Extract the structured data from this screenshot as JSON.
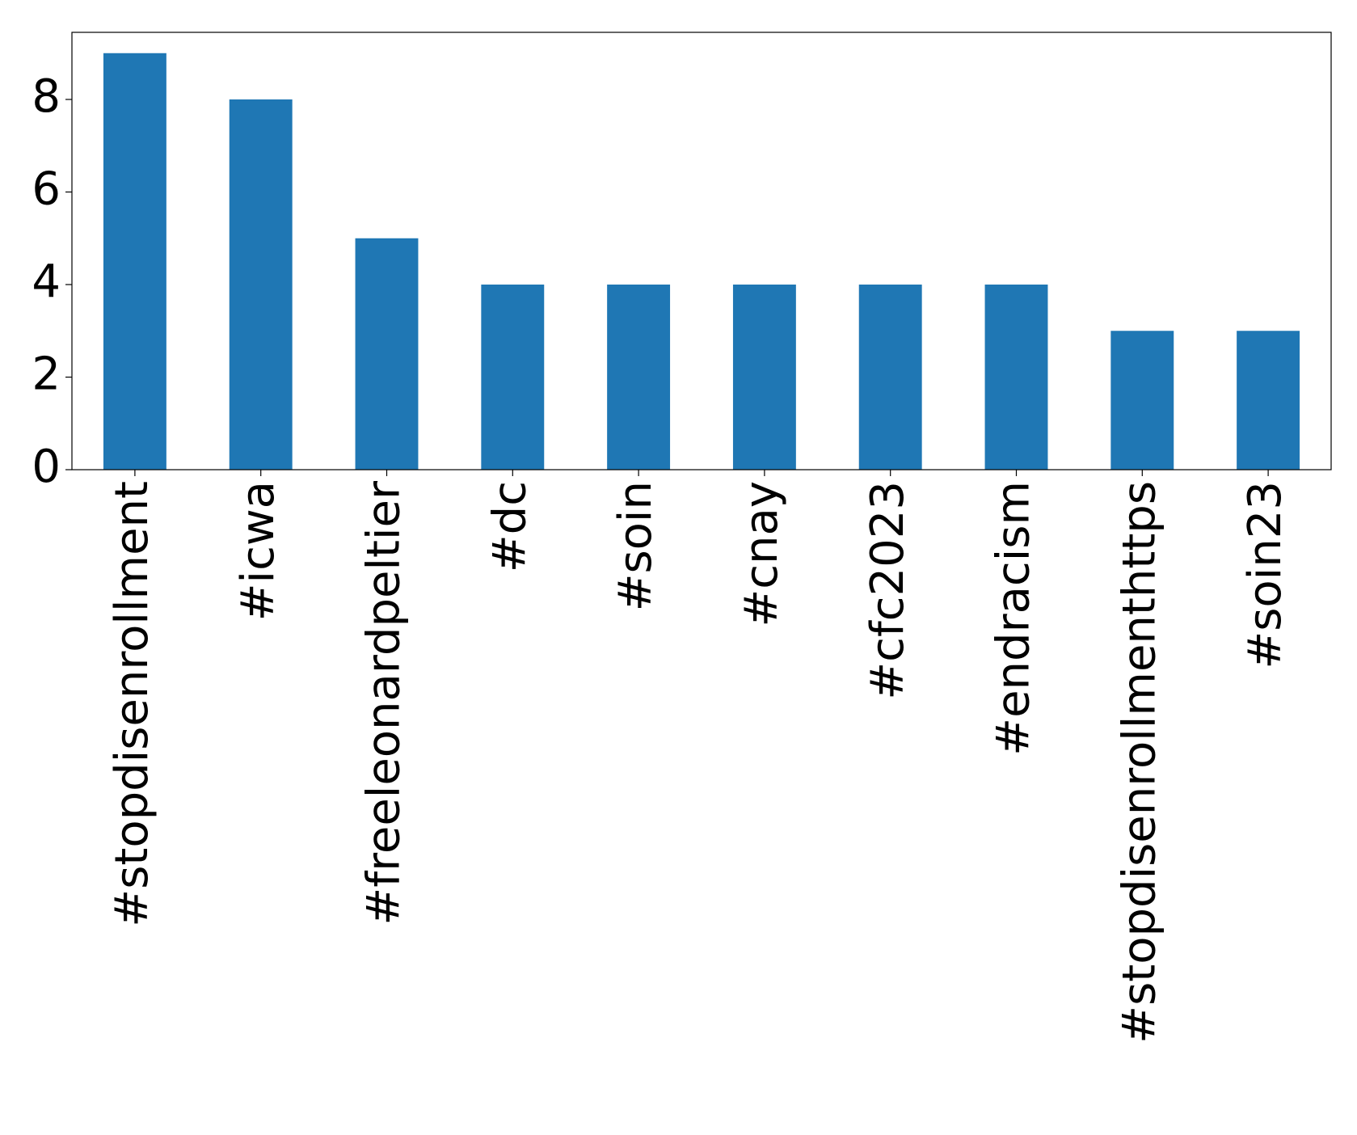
{
  "chart_data": {
    "type": "bar",
    "categories": [
      "#stopdisenrollment",
      "#icwa",
      "#freeleonardpeltier",
      "#dc",
      "#soin",
      "#cnay",
      "#cfc2023",
      "#endracism",
      "#stopdisenrollmenthttps",
      "#soin23"
    ],
    "values": [
      9,
      8,
      5,
      4,
      4,
      4,
      4,
      4,
      3,
      3
    ],
    "color": "#1f77b4",
    "ylim": [
      0,
      9.45
    ],
    "yticks": [
      0,
      2,
      4,
      6,
      8
    ],
    "grid": false
  }
}
